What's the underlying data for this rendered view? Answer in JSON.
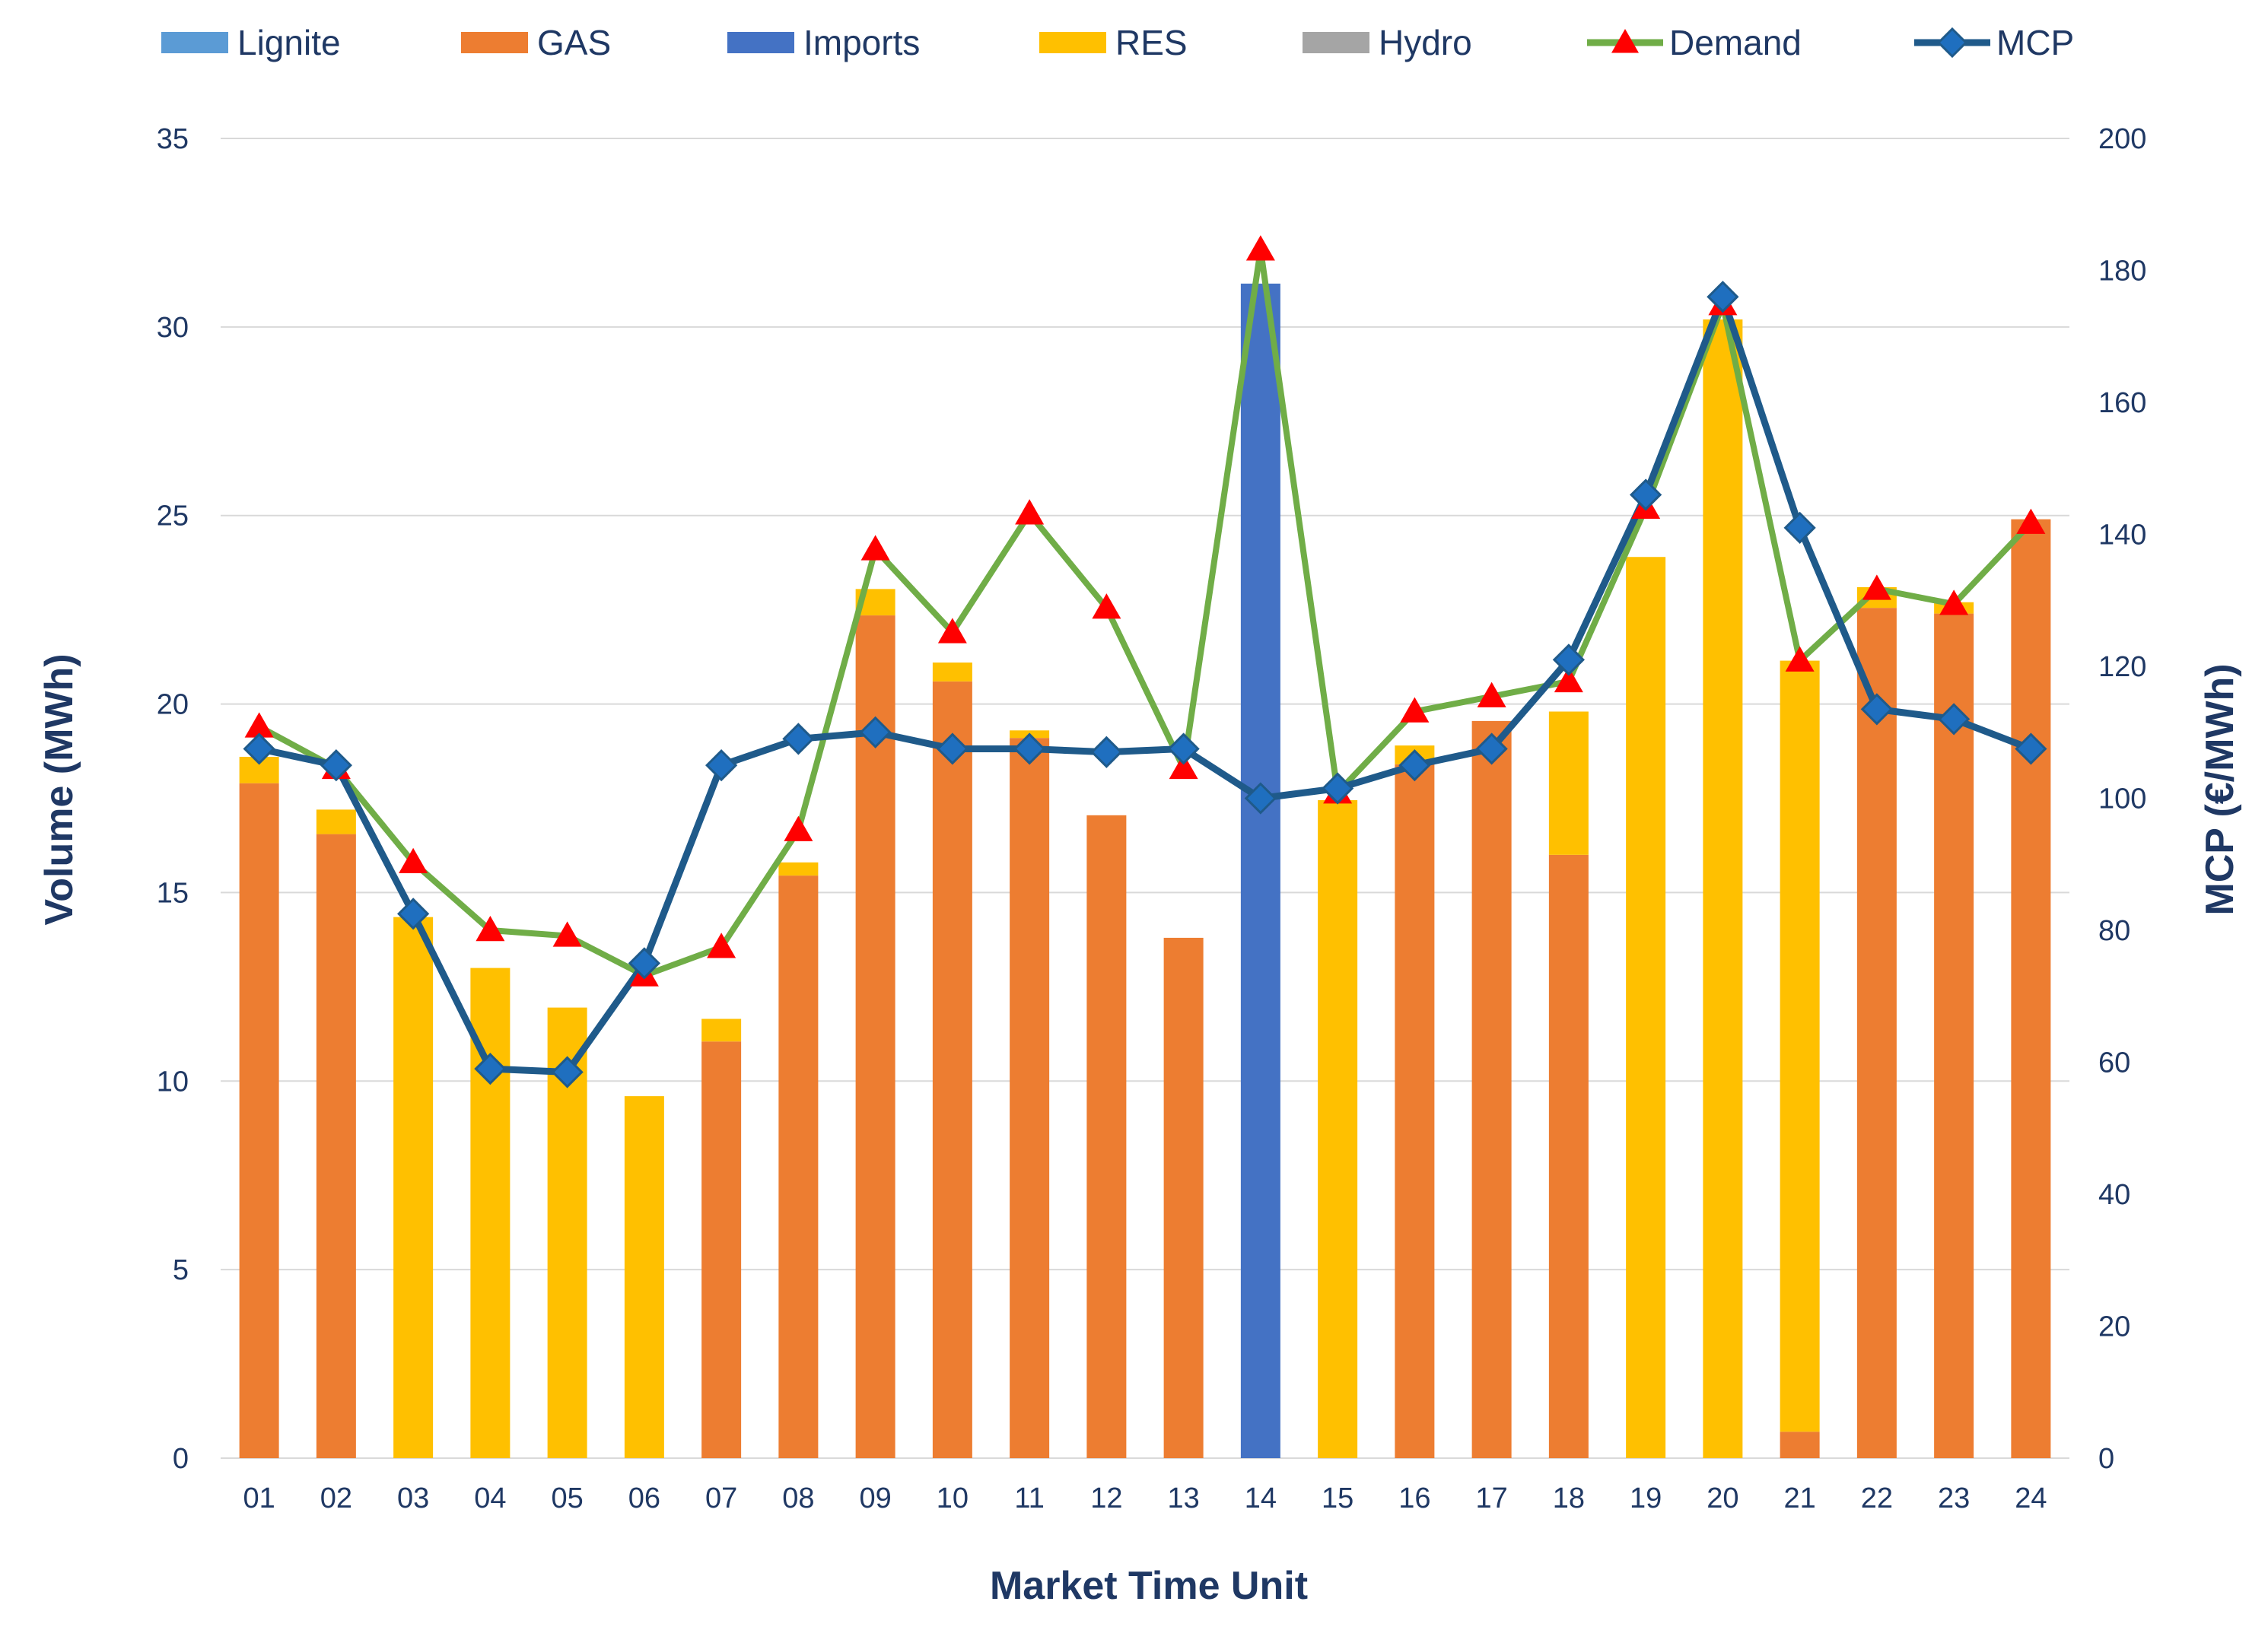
{
  "chart_data": {
    "type": "bar",
    "stacked": true,
    "categories": [
      "01",
      "02",
      "03",
      "04",
      "05",
      "06",
      "07",
      "08",
      "09",
      "10",
      "11",
      "12",
      "13",
      "14",
      "15",
      "16",
      "17",
      "18",
      "19",
      "20",
      "21",
      "22",
      "23",
      "24"
    ],
    "series": [
      {
        "name": "Lignite",
        "color": "#5b9bd5",
        "axis": "left",
        "kind": "bar",
        "values": [
          0,
          0,
          0,
          0,
          0,
          0,
          0,
          0,
          0,
          0,
          0,
          0,
          0,
          0,
          0,
          0,
          0,
          0,
          0,
          0,
          0,
          0,
          0,
          0
        ]
      },
      {
        "name": "GAS",
        "color": "#ed7d31",
        "axis": "left",
        "kind": "bar",
        "values": [
          17.9,
          16.55,
          0,
          0,
          0,
          0,
          11.05,
          15.45,
          22.35,
          20.6,
          19.1,
          17.05,
          13.8,
          0,
          0,
          18.4,
          19.55,
          16.0,
          0,
          0,
          0.7,
          22.55,
          22.4,
          24.9
        ]
      },
      {
        "name": "Imports",
        "color": "#4472c4",
        "axis": "left",
        "kind": "bar",
        "values": [
          0,
          0,
          0,
          0,
          0,
          0,
          0,
          0,
          0,
          0,
          0,
          0,
          0,
          31.15,
          0,
          0,
          0,
          0,
          0,
          0,
          0,
          0,
          0,
          0
        ]
      },
      {
        "name": "RES",
        "color": "#ffc000",
        "axis": "left",
        "kind": "bar",
        "values": [
          0.7,
          0.65,
          14.35,
          13.0,
          11.95,
          9.6,
          0.6,
          0.35,
          0.7,
          0.5,
          0.2,
          0,
          0,
          0,
          17.45,
          0.5,
          0,
          3.8,
          23.9,
          30.2,
          20.45,
          0.55,
          0.3,
          0
        ]
      },
      {
        "name": "Hydro",
        "color": "#a5a5a5",
        "axis": "left",
        "kind": "bar",
        "values": [
          0,
          0,
          0,
          0,
          0,
          0,
          0,
          0,
          0,
          0,
          0,
          0,
          0,
          0,
          0,
          0,
          0,
          0,
          0,
          0,
          0,
          0,
          0,
          0
        ]
      },
      {
        "name": "Demand",
        "color": "#70ad47",
        "marker_color": "#ff0000",
        "marker": "triangle",
        "axis": "left",
        "kind": "line",
        "values": [
          19.4,
          18.3,
          15.8,
          14.0,
          13.85,
          12.8,
          13.55,
          16.65,
          24.1,
          21.9,
          25.05,
          22.55,
          18.3,
          32.05,
          17.65,
          19.8,
          20.2,
          20.6,
          25.2,
          30.6,
          21.15,
          23.05,
          22.65,
          24.8
        ]
      },
      {
        "name": "MCP",
        "color": "#1f5a8a",
        "marker_color": "#1f6fbf",
        "marker": "diamond",
        "axis": "right",
        "kind": "line",
        "values": [
          107.5,
          105,
          82.5,
          59,
          58.5,
          75,
          105,
          109,
          110,
          107.5,
          107.5,
          107,
          107.5,
          100,
          101.5,
          105,
          107.5,
          121,
          146,
          176,
          141,
          113.5,
          112,
          107.5
        ]
      }
    ],
    "y_left": {
      "label": "Volume (MWh)",
      "min": 0,
      "max": 35,
      "ticks": [
        0,
        5,
        10,
        15,
        20,
        25,
        30,
        35
      ]
    },
    "y_right": {
      "label": "MCP (€/MWh)",
      "min": 0,
      "max": 200,
      "ticks": [
        0,
        20,
        40,
        60,
        80,
        100,
        120,
        140,
        160,
        180,
        200
      ]
    },
    "xlabel": "Market Time Unit",
    "grid": true,
    "legend_position": "top"
  }
}
